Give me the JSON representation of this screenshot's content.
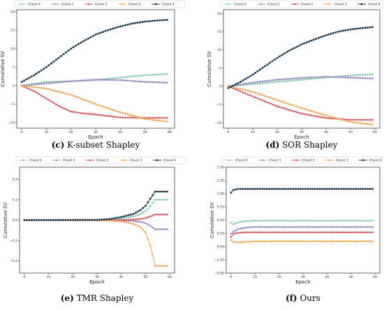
{
  "legend_labels": [
    "Client 0",
    "Client 1",
    "Client 2",
    "Client 3",
    "Client 4"
  ],
  "colors": [
    "#8fd1b6",
    "#9b8ec4",
    "#d44a56",
    "#f4a24b",
    "#1c3a52"
  ],
  "chart_data": [
    {
      "type": "line",
      "caption_bold": "(c)",
      "caption_text": "K-subset Shapley",
      "xlabel": "Epoch",
      "ylabel": "Cumulative SV",
      "xlim": [
        -2,
        62
      ],
      "ylim": [
        -11.5,
        20.5
      ],
      "xticks": [
        0,
        10,
        20,
        30,
        40,
        50,
        60
      ],
      "yticks": [
        -10,
        -5,
        0,
        5,
        10,
        15,
        20
      ],
      "tick_labels_x": [
        "0",
        "10",
        "20",
        "30",
        "40",
        "50",
        "60"
      ],
      "tick_labels_y": [
        "−10",
        "−5",
        "0",
        "5",
        "10",
        "15",
        "20"
      ],
      "legend_position": "top",
      "series": [
        {
          "name": "Client 0",
          "x": [
            0,
            10,
            20,
            30,
            40,
            50,
            60
          ],
          "values": [
            0,
            1.0,
            1.2,
            1.5,
            2.2,
            2.8,
            3.2
          ]
        },
        {
          "name": "Client 1",
          "x": [
            0,
            10,
            20,
            30,
            40,
            50,
            60
          ],
          "values": [
            0,
            0.6,
            1.2,
            1.6,
            1.5,
            1.0,
            0.8
          ]
        },
        {
          "name": "Client 2",
          "x": [
            0,
            5,
            10,
            15,
            20,
            25,
            30,
            40,
            50,
            60
          ],
          "values": [
            0,
            -1.5,
            -3.5,
            -5.5,
            -7.0,
            -7.5,
            -7.8,
            -8.6,
            -8.7,
            -8.7
          ]
        },
        {
          "name": "Client 3",
          "x": [
            0,
            10,
            20,
            30,
            40,
            50,
            60
          ],
          "values": [
            0,
            -0.8,
            -2.5,
            -5.0,
            -7.2,
            -9.0,
            -9.8
          ]
        },
        {
          "name": "Client 4",
          "x": [
            0,
            5,
            10,
            15,
            20,
            25,
            30,
            35,
            40,
            45,
            50,
            55,
            60
          ],
          "values": [
            1.0,
            2.8,
            5.0,
            7.5,
            10.0,
            12.0,
            13.8,
            15.0,
            16.0,
            16.8,
            17.3,
            17.6,
            17.8
          ]
        }
      ]
    },
    {
      "type": "line",
      "caption_bold": "(d)",
      "caption_text": "SOR Shapley",
      "xlabel": "Epoch",
      "ylabel": "Cumulative SV",
      "xlim": [
        -2,
        62
      ],
      "ylim": [
        -11.5,
        21
      ],
      "xticks": [
        0,
        10,
        20,
        30,
        40,
        50,
        60
      ],
      "yticks": [
        -10,
        -5,
        0,
        5,
        10,
        15,
        20
      ],
      "tick_labels_x": [
        "0",
        "10",
        "20",
        "30",
        "40",
        "50",
        "60"
      ],
      "tick_labels_y": [
        "−10",
        "−5",
        "0",
        "5",
        "10",
        "15",
        "20"
      ],
      "legend_position": "top",
      "series": [
        {
          "name": "Client 0",
          "x": [
            0,
            10,
            20,
            30,
            40,
            50,
            60
          ],
          "values": [
            0,
            0.6,
            1.2,
            1.8,
            2.4,
            3.0,
            3.3
          ]
        },
        {
          "name": "Client 1",
          "x": [
            0,
            10,
            20,
            30,
            40,
            50,
            60
          ],
          "values": [
            0,
            1.0,
            1.8,
            2.3,
            2.6,
            2.4,
            2.1
          ]
        },
        {
          "name": "Client 2",
          "x": [
            0,
            10,
            20,
            30,
            40,
            50,
            60
          ],
          "values": [
            0,
            -2.8,
            -5.5,
            -7.5,
            -8.7,
            -9.2,
            -9.2
          ]
        },
        {
          "name": "Client 3",
          "x": [
            0,
            10,
            20,
            30,
            40,
            50,
            60
          ],
          "values": [
            0,
            -1.5,
            -3.8,
            -6.0,
            -8.0,
            -9.8,
            -10.6
          ]
        },
        {
          "name": "Client 4",
          "x": [
            0,
            5,
            10,
            15,
            20,
            25,
            30,
            35,
            40,
            45,
            50,
            55,
            60
          ],
          "values": [
            -0.5,
            1.2,
            3.2,
            5.5,
            7.8,
            9.8,
            11.5,
            12.8,
            14.0,
            15.0,
            15.6,
            16.0,
            16.3
          ]
        }
      ]
    },
    {
      "type": "line",
      "caption_bold": "(e)",
      "caption_text": "TMR Shapley",
      "xlabel": "Epoch",
      "ylabel": "Cumulative SV",
      "xlim": [
        -2,
        62
      ],
      "ylim": [
        -0.52,
        0.52
      ],
      "xticks": [
        0,
        10,
        20,
        30,
        40,
        50,
        60
      ],
      "yticks": [
        -0.4,
        -0.2,
        0.0,
        0.2,
        0.4
      ],
      "tick_labels_x": [
        "0",
        "10",
        "20",
        "30",
        "40",
        "50",
        "60"
      ],
      "tick_labels_y": [
        "−0.4",
        "−0.2",
        "0.0",
        "0.2",
        "0.4"
      ],
      "legend_position": "top",
      "series": [
        {
          "name": "Client 0",
          "x": [
            0,
            30,
            35,
            40,
            45,
            48,
            50,
            52,
            54,
            60
          ],
          "values": [
            0,
            0,
            0.005,
            0.015,
            0.035,
            0.06,
            0.09,
            0.14,
            0.2,
            0.2
          ]
        },
        {
          "name": "Client 1",
          "x": [
            0,
            35,
            40,
            45,
            48,
            50,
            52,
            54,
            60
          ],
          "values": [
            0,
            0,
            -0.002,
            -0.008,
            -0.018,
            -0.03,
            -0.055,
            -0.09,
            -0.09
          ]
        },
        {
          "name": "Client 2",
          "x": [
            0,
            40,
            45,
            48,
            50,
            52,
            54,
            60
          ],
          "values": [
            0,
            0,
            0.005,
            0.012,
            0.02,
            0.035,
            0.055,
            0.055
          ]
        },
        {
          "name": "Client 3",
          "x": [
            0,
            35,
            40,
            43,
            46,
            48,
            50,
            52,
            54,
            60
          ],
          "values": [
            0,
            -0.003,
            -0.012,
            -0.025,
            -0.045,
            -0.07,
            -0.12,
            -0.25,
            -0.45,
            -0.45
          ]
        },
        {
          "name": "Client 4",
          "x": [
            0,
            30,
            35,
            40,
            45,
            48,
            50,
            52,
            54,
            60
          ],
          "values": [
            0,
            0.002,
            0.01,
            0.03,
            0.06,
            0.1,
            0.14,
            0.21,
            0.28,
            0.28
          ]
        }
      ]
    },
    {
      "type": "line",
      "caption_bold": "(f)",
      "caption_text": "Ours",
      "xlabel": "Epoch",
      "ylabel": "Cumulative SV",
      "xlim": [
        -2,
        62
      ],
      "ylim": [
        -0.5,
        1.5
      ],
      "xticks": [
        0,
        10,
        20,
        30,
        40,
        50,
        60
      ],
      "yticks": [
        -0.5,
        -0.25,
        0.0,
        0.25,
        0.5,
        0.75,
        1.0,
        1.25,
        1.5
      ],
      "tick_labels_x": [
        "0",
        "10",
        "20",
        "30",
        "40",
        "50",
        "60"
      ],
      "tick_labels_y": [
        "−0.50",
        "−0.25",
        "0.00",
        "0.25",
        "0.50",
        "0.75",
        "1.00",
        "1.25",
        "1.50"
      ],
      "legend_position": "top",
      "series": [
        {
          "name": "Client 0",
          "x": [
            0,
            1,
            3,
            6,
            10,
            60
          ],
          "values": [
            0.45,
            0.42,
            0.46,
            0.48,
            0.49,
            0.49
          ]
        },
        {
          "name": "Client 1",
          "x": [
            0,
            1,
            3,
            6,
            10,
            60
          ],
          "values": [
            0.24,
            0.28,
            0.33,
            0.36,
            0.37,
            0.37
          ]
        },
        {
          "name": "Client 2",
          "x": [
            0,
            1,
            3,
            6,
            10,
            60
          ],
          "values": [
            0.18,
            0.24,
            0.26,
            0.27,
            0.27,
            0.27
          ]
        },
        {
          "name": "Client 3",
          "x": [
            0,
            1,
            3,
            6,
            10,
            60
          ],
          "values": [
            0.12,
            0.09,
            0.08,
            0.09,
            0.1,
            0.1
          ]
        },
        {
          "name": "Client 4",
          "x": [
            0,
            1,
            3,
            60
          ],
          "values": [
            1.02,
            1.07,
            1.09,
            1.09
          ]
        }
      ]
    }
  ]
}
